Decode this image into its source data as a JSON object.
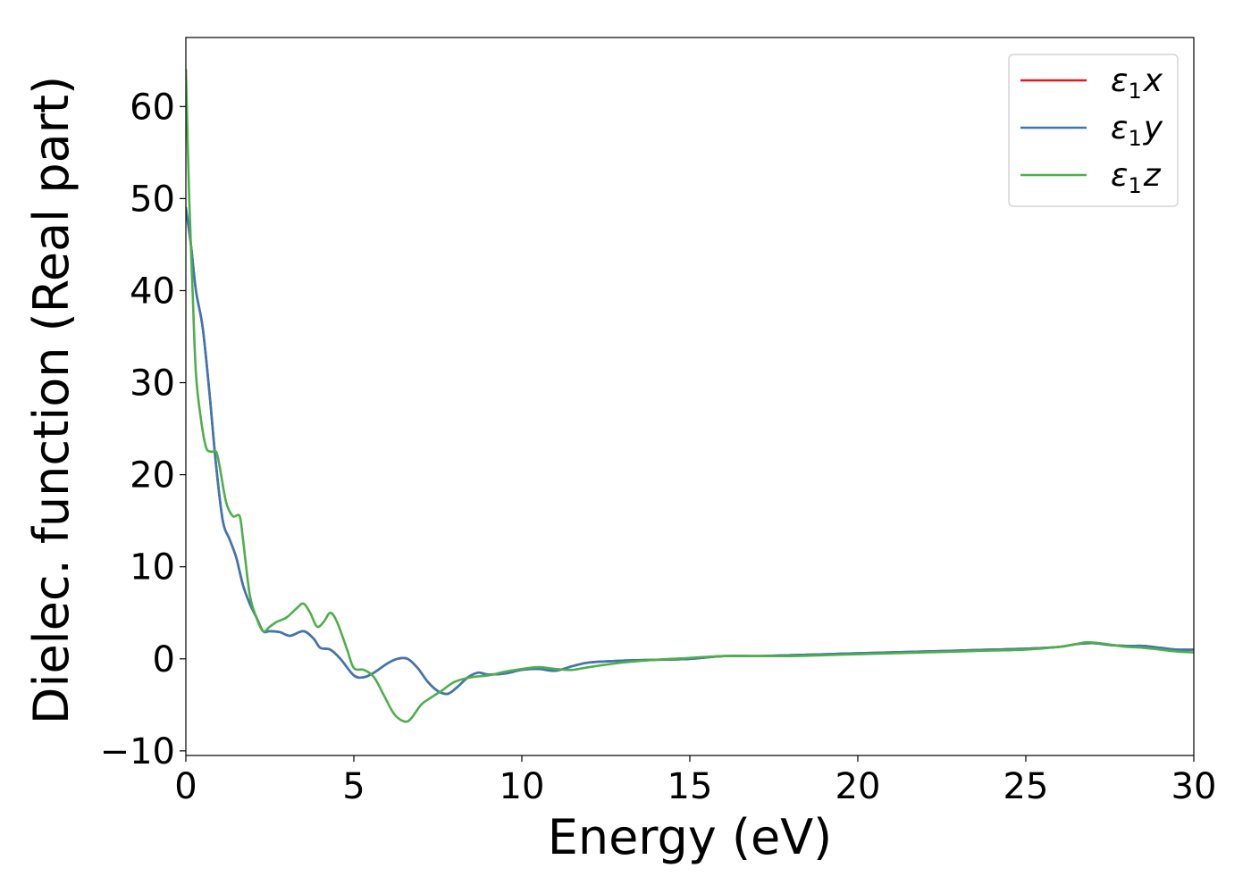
{
  "chart_data": {
    "type": "line",
    "title": "",
    "xlabel": "Energy (eV)",
    "ylabel": "Dielec. function (Real part)",
    "xlim": [
      0,
      30
    ],
    "ylim": [
      -10.5,
      67.5
    ],
    "xticks": [
      0,
      5,
      10,
      15,
      20,
      25,
      30
    ],
    "xtick_labels": [
      "0",
      "5",
      "10",
      "15",
      "20",
      "25",
      "30"
    ],
    "yticks": [
      -10,
      0,
      10,
      20,
      30,
      40,
      50,
      60
    ],
    "ytick_labels": [
      "−10",
      "0",
      "10",
      "20",
      "30",
      "40",
      "50",
      "60"
    ],
    "grid": false,
    "legend_position": "top-right",
    "series": [
      {
        "name": "ε1x",
        "legend_main": "ε",
        "legend_sub": "1",
        "legend_var": "x",
        "color": "#e41a1c",
        "x": [
          0,
          0.15,
          0.3,
          0.5,
          0.7,
          0.9,
          1.1,
          1.3,
          1.5,
          1.7,
          1.9,
          2.1,
          2.3,
          2.5,
          2.8,
          3.1,
          3.5,
          3.8,
          4.0,
          4.3,
          4.6,
          5.0,
          5.3,
          5.6,
          6.0,
          6.3,
          6.6,
          6.9,
          7.2,
          7.5,
          7.8,
          8.1,
          8.4,
          8.7,
          9.0,
          9.5,
          10.0,
          10.5,
          11.0,
          11.5,
          12.0,
          13.0,
          14.0,
          15.0,
          16.0,
          17.0,
          18.0,
          19.0,
          20.0,
          21.0,
          22.0,
          23.0,
          24.0,
          25.0,
          26.0,
          26.5,
          27.0,
          27.5,
          28.0,
          28.5,
          29.0,
          29.5,
          30.0
        ],
        "y": [
          49,
          45,
          40,
          36,
          29,
          21,
          15,
          13,
          11,
          8,
          6,
          4.5,
          3,
          3,
          2.9,
          2.5,
          3,
          2.2,
          1.2,
          1.0,
          0.0,
          -1.8,
          -2,
          -1.5,
          -0.5,
          0.0,
          0.0,
          -1.0,
          -2.5,
          -3.5,
          -3.8,
          -3.0,
          -2.0,
          -1.5,
          -1.7,
          -1.6,
          -1.2,
          -1.1,
          -1.3,
          -0.8,
          -0.4,
          -0.2,
          -0.1,
          0.0,
          0.3,
          0.3,
          0.4,
          0.5,
          0.6,
          0.7,
          0.8,
          0.9,
          1.0,
          1.1,
          1.3,
          1.6,
          1.7,
          1.5,
          1.4,
          1.4,
          1.2,
          1.0,
          1.0
        ]
      },
      {
        "name": "ε1y",
        "legend_main": "ε",
        "legend_sub": "1",
        "legend_var": "y",
        "color": "#3a78b5",
        "x": [
          0,
          0.15,
          0.3,
          0.5,
          0.7,
          0.9,
          1.1,
          1.3,
          1.5,
          1.7,
          1.9,
          2.1,
          2.3,
          2.5,
          2.8,
          3.1,
          3.5,
          3.8,
          4.0,
          4.3,
          4.6,
          5.0,
          5.3,
          5.6,
          6.0,
          6.3,
          6.6,
          6.9,
          7.2,
          7.5,
          7.8,
          8.1,
          8.4,
          8.7,
          9.0,
          9.5,
          10.0,
          10.5,
          11.0,
          11.5,
          12.0,
          13.0,
          14.0,
          15.0,
          16.0,
          17.0,
          18.0,
          19.0,
          20.0,
          21.0,
          22.0,
          23.0,
          24.0,
          25.0,
          26.0,
          26.5,
          27.0,
          27.5,
          28.0,
          28.5,
          29.0,
          29.5,
          30.0
        ],
        "y": [
          49,
          45,
          40,
          36,
          29,
          21,
          15,
          13,
          11,
          8,
          6,
          4.5,
          3,
          3,
          2.9,
          2.5,
          3,
          2.2,
          1.2,
          1.0,
          0.0,
          -1.8,
          -2,
          -1.5,
          -0.5,
          0.0,
          0.0,
          -1.0,
          -2.5,
          -3.5,
          -3.8,
          -3.0,
          -2.0,
          -1.5,
          -1.7,
          -1.6,
          -1.2,
          -1.1,
          -1.3,
          -0.8,
          -0.4,
          -0.2,
          -0.1,
          0.0,
          0.3,
          0.3,
          0.4,
          0.5,
          0.6,
          0.7,
          0.8,
          0.9,
          1.0,
          1.1,
          1.3,
          1.6,
          1.7,
          1.5,
          1.4,
          1.4,
          1.2,
          1.0,
          1.0
        ]
      },
      {
        "name": "ε1z",
        "legend_main": "ε",
        "legend_sub": "1",
        "legend_var": "z",
        "color": "#4daf4a",
        "x": [
          0,
          0.1,
          0.2,
          0.3,
          0.45,
          0.6,
          0.75,
          0.9,
          1.0,
          1.2,
          1.4,
          1.6,
          1.7,
          1.9,
          2.1,
          2.3,
          2.5,
          2.7,
          3.0,
          3.3,
          3.5,
          3.7,
          3.9,
          4.1,
          4.3,
          4.5,
          4.8,
          5.0,
          5.3,
          5.6,
          5.9,
          6.2,
          6.5,
          6.7,
          7.0,
          7.3,
          7.6,
          8.0,
          8.5,
          9.0,
          9.5,
          10.0,
          10.5,
          11.0,
          11.5,
          12.0,
          13.0,
          14.0,
          15.0,
          16.0,
          17.0,
          18.0,
          19.0,
          20.0,
          21.0,
          22.0,
          23.0,
          24.0,
          25.0,
          26.0,
          26.5,
          26.8,
          27.2,
          27.6,
          28.0,
          28.5,
          29.0,
          29.5,
          30.0
        ],
        "y": [
          64,
          50,
          40,
          31,
          26,
          23,
          22.5,
          22.5,
          21,
          17,
          15.5,
          15.5,
          13,
          7,
          4.5,
          3,
          3.5,
          4,
          4.5,
          5.5,
          6,
          5,
          3.5,
          4,
          5,
          4,
          1,
          -1,
          -1.2,
          -2,
          -4,
          -6,
          -6.8,
          -6.5,
          -5,
          -4.2,
          -3.5,
          -2.5,
          -2,
          -1.8,
          -1.4,
          -1.1,
          -0.9,
          -1.1,
          -1.2,
          -0.9,
          -0.4,
          -0.1,
          0.1,
          0.3,
          0.3,
          0.3,
          0.4,
          0.5,
          0.6,
          0.7,
          0.8,
          0.9,
          1.0,
          1.3,
          1.6,
          1.8,
          1.7,
          1.5,
          1.3,
          1.2,
          1.0,
          0.8,
          0.7
        ]
      }
    ]
  }
}
